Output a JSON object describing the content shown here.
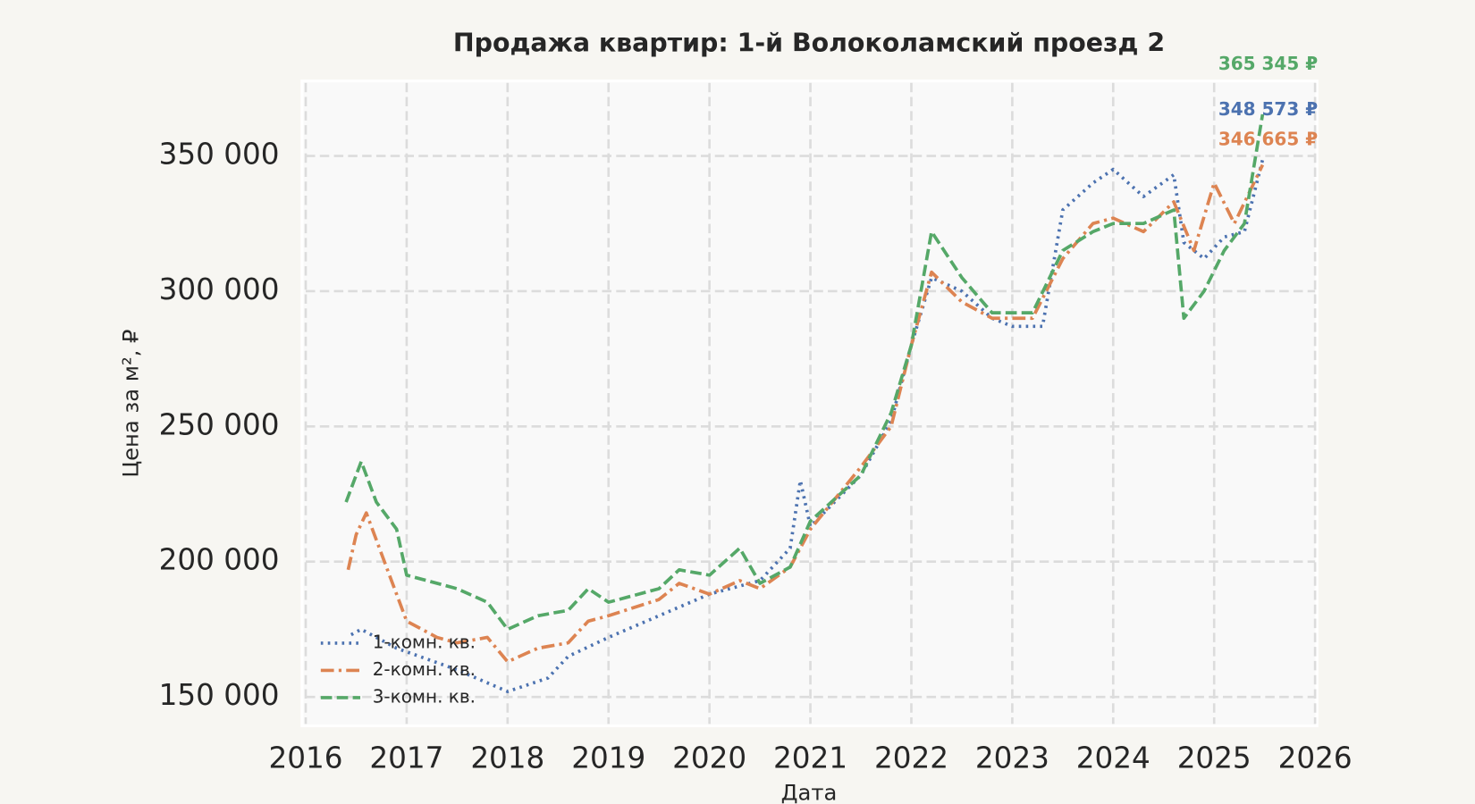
{
  "chart_data": {
    "type": "line",
    "title": "Продажа квартир: 1-й Волоколамский проезд 2",
    "x_label": "Дата",
    "y_label": "Цена за м², ₽",
    "xlim": [
      2016,
      2026
    ],
    "xticks": [
      2016,
      2017,
      2018,
      2019,
      2020,
      2021,
      2022,
      2023,
      2024,
      2025,
      2026
    ],
    "ylim": [
      140000,
      377000
    ],
    "yticks": [
      {
        "value": 150000,
        "label": "150 000"
      },
      {
        "value": 200000,
        "label": "200 000"
      },
      {
        "value": 250000,
        "label": "250 000"
      },
      {
        "value": 300000,
        "label": "300 000"
      },
      {
        "value": 350000,
        "label": "350 000"
      }
    ],
    "grid": true,
    "legend": "lower left",
    "series": [
      {
        "name": "1-комн. кв.",
        "color": "#4c72b0",
        "dash": "dotted",
        "x": [
          2016.45,
          2016.55,
          2016.9,
          2017.5,
          2018.0,
          2018.4,
          2018.6,
          2019.0,
          2019.5,
          2020.0,
          2020.5,
          2020.8,
          2020.9,
          2021.0,
          2021.5,
          2021.8,
          2022.0,
          2022.2,
          2022.5,
          2022.8,
          2023.0,
          2023.3,
          2023.5,
          2023.8,
          2024.0,
          2024.3,
          2024.6,
          2024.7,
          2024.9,
          2025.1,
          2025.3,
          2025.48
        ],
        "values": [
          173000,
          175000,
          168000,
          160000,
          152000,
          157000,
          165000,
          172000,
          180000,
          188000,
          193000,
          205000,
          230000,
          213000,
          232000,
          252000,
          280000,
          305000,
          300000,
          290000,
          287000,
          287000,
          330000,
          340000,
          345000,
          335000,
          343000,
          318000,
          312000,
          320000,
          322000,
          348573
        ],
        "value_labels": [
          null,
          null,
          null,
          null,
          null,
          null,
          null,
          null,
          null,
          null,
          null,
          null,
          null,
          null,
          null,
          null,
          null,
          null,
          null,
          null,
          null,
          null,
          null,
          null,
          null,
          null,
          null,
          null,
          null,
          null,
          null,
          "348 573 ₽"
        ]
      },
      {
        "name": "2-комн. кв.",
        "color": "#dd8452",
        "dash": "dashdot",
        "x": [
          2016.42,
          2016.5,
          2016.6,
          2016.8,
          2017.0,
          2017.3,
          2017.5,
          2017.8,
          2018.0,
          2018.3,
          2018.6,
          2018.8,
          2019.0,
          2019.5,
          2019.7,
          2020.0,
          2020.3,
          2020.5,
          2020.8,
          2021.0,
          2021.5,
          2021.8,
          2022.0,
          2022.2,
          2022.5,
          2022.8,
          2023.2,
          2023.5,
          2023.8,
          2024.0,
          2024.3,
          2024.6,
          2024.8,
          2025.0,
          2025.2,
          2025.48
        ],
        "values": [
          197000,
          210000,
          218000,
          198000,
          178000,
          172000,
          170000,
          172000,
          163000,
          168000,
          170000,
          178000,
          180000,
          186000,
          192000,
          188000,
          193000,
          190000,
          198000,
          212000,
          235000,
          250000,
          280000,
          307000,
          296000,
          290000,
          290000,
          312000,
          325000,
          327000,
          322000,
          333000,
          315000,
          340000,
          325000,
          346665
        ],
        "value_labels": [
          null,
          null,
          null,
          null,
          null,
          null,
          null,
          null,
          null,
          null,
          null,
          null,
          null,
          null,
          null,
          null,
          null,
          null,
          null,
          null,
          null,
          null,
          null,
          null,
          null,
          null,
          null,
          null,
          null,
          null,
          null,
          null,
          null,
          null,
          null,
          "346 665 ₽"
        ]
      },
      {
        "name": "3-комн. кв.",
        "color": "#55a868",
        "dash": "dashed",
        "x": [
          2016.4,
          2016.55,
          2016.7,
          2016.9,
          2017.0,
          2017.5,
          2017.8,
          2018.0,
          2018.3,
          2018.6,
          2018.8,
          2019.0,
          2019.5,
          2019.7,
          2020.0,
          2020.3,
          2020.5,
          2020.8,
          2021.0,
          2021.5,
          2021.8,
          2022.0,
          2022.2,
          2022.5,
          2022.8,
          2023.2,
          2023.5,
          2023.8,
          2024.0,
          2024.3,
          2024.6,
          2024.7,
          2024.9,
          2025.1,
          2025.3,
          2025.48
        ],
        "values": [
          222000,
          237000,
          222000,
          212000,
          195000,
          190000,
          185000,
          175000,
          180000,
          182000,
          190000,
          185000,
          190000,
          197000,
          195000,
          205000,
          192000,
          198000,
          215000,
          232000,
          255000,
          280000,
          322000,
          305000,
          292000,
          292000,
          315000,
          322000,
          325000,
          325000,
          330000,
          290000,
          300000,
          315000,
          325000,
          365345
        ],
        "value_labels": [
          null,
          null,
          null,
          null,
          null,
          null,
          null,
          null,
          null,
          null,
          null,
          null,
          null,
          null,
          null,
          null,
          null,
          null,
          null,
          null,
          null,
          null,
          null,
          null,
          null,
          null,
          null,
          null,
          null,
          null,
          null,
          null,
          null,
          null,
          null,
          "365 345 ₽"
        ]
      }
    ]
  }
}
